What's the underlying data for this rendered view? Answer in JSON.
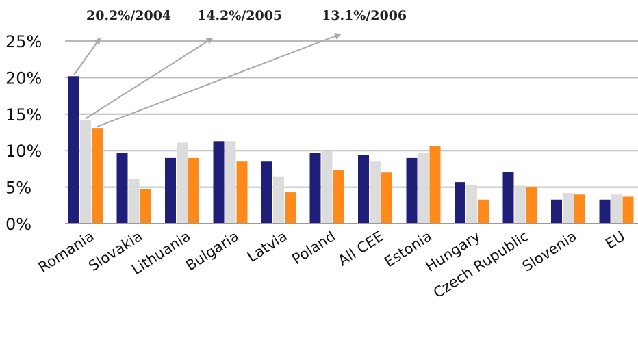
{
  "chart_data": {
    "type": "bar",
    "categories": [
      "Romania",
      "Slovakia",
      "Lithuania",
      "Bulgaria",
      "Latvia",
      "Poland",
      "All CEE",
      "Estonia",
      "Hungary",
      "Czech Rupublic",
      "Slovenia",
      "EU"
    ],
    "series": [
      {
        "key": "2004",
        "color": "#1f1f7a",
        "values": [
          20.2,
          9.7,
          9.0,
          11.3,
          8.5,
          9.7,
          9.4,
          9.0,
          5.7,
          7.1,
          3.3,
          3.3
        ]
      },
      {
        "key": "2005",
        "color": "#dcdcdc",
        "values": [
          14.2,
          6.1,
          11.1,
          11.3,
          6.4,
          10.0,
          8.5,
          9.7,
          5.3,
          5.2,
          4.2,
          4.0
        ]
      },
      {
        "key": "2006",
        "color": "#ff8a1c",
        "values": [
          13.1,
          4.7,
          9.0,
          8.5,
          4.3,
          7.3,
          7.0,
          10.6,
          3.3,
          5.0,
          4.0,
          3.7
        ]
      }
    ],
    "y_ticks": [
      "0%",
      "5%",
      "10%",
      "15%",
      "20%",
      "25%"
    ],
    "ylim": [
      0,
      25
    ],
    "grid": true,
    "annotations": [
      {
        "text": "20.2%/2004",
        "series": 0,
        "category": 0
      },
      {
        "text": "14.2%/2005",
        "series": 1,
        "category": 0
      },
      {
        "text": "13.1%/2006",
        "series": 2,
        "category": 0
      }
    ]
  }
}
